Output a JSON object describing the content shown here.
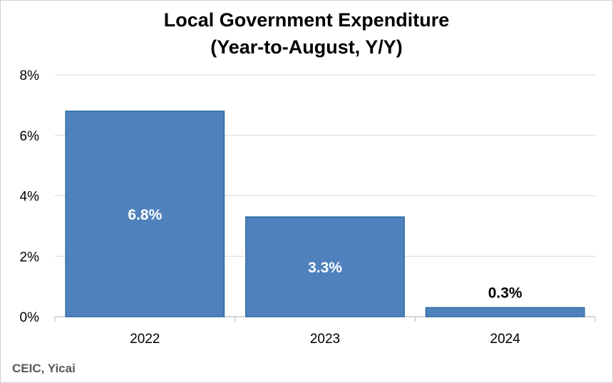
{
  "chart_data": {
    "type": "bar",
    "title": "Local Government Expenditure",
    "subtitle": "(Year-to-August, Y/Y)",
    "categories": [
      "2022",
      "2023",
      "2024"
    ],
    "values": [
      6.8,
      3.3,
      0.3
    ],
    "data_labels": [
      "6.8%",
      "3.3%",
      "0.3%"
    ],
    "xlabel": "",
    "ylabel": "",
    "ylim": [
      0,
      8
    ],
    "yticks": [
      0,
      2,
      4,
      6,
      8
    ],
    "ytick_labels": [
      "0%",
      "2%",
      "4%",
      "6%",
      "8%"
    ],
    "grid": true,
    "legend": "none",
    "colors": {
      "bar_fill": "#4F81BD",
      "bar_stroke": "#2E6DA4",
      "grid": "#D9D9D9",
      "axis": "#BFBFBF",
      "label_inside": "#FFFFFF",
      "label_outside": "#000000"
    }
  },
  "source": "CEIC, Yicai"
}
